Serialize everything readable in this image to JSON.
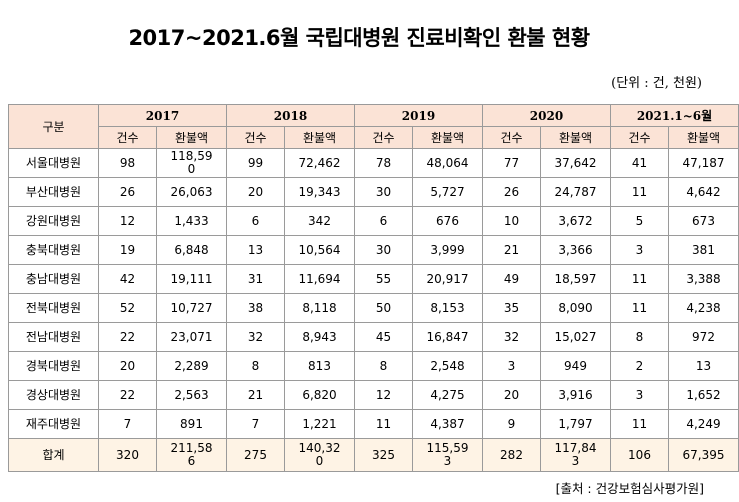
{
  "title": "2017~2021.6월 국립대병원 진료비확인 환불 현황",
  "unit": "(단위 : 건, 천원)",
  "header": {
    "category": "구분",
    "years": [
      "2017",
      "2018",
      "2019",
      "2020",
      "2021.1~6월"
    ],
    "count": "건수",
    "amount": "환불액"
  },
  "rows": [
    {
      "name": "서울대병원",
      "values": [
        "98",
        "118,590",
        "99",
        "72,462",
        "78",
        "48,064",
        "77",
        "37,642",
        "41",
        "47,187"
      ]
    },
    {
      "name": "부산대병원",
      "values": [
        "26",
        "26,063",
        "20",
        "19,343",
        "30",
        "5,727",
        "26",
        "24,787",
        "11",
        "4,642"
      ]
    },
    {
      "name": "강원대병원",
      "values": [
        "12",
        "1,433",
        "6",
        "342",
        "6",
        "676",
        "10",
        "3,672",
        "5",
        "673"
      ]
    },
    {
      "name": "충북대병원",
      "values": [
        "19",
        "6,848",
        "13",
        "10,564",
        "30",
        "3,999",
        "21",
        "3,366",
        "3",
        "381"
      ]
    },
    {
      "name": "충남대병원",
      "values": [
        "42",
        "19,111",
        "31",
        "11,694",
        "55",
        "20,917",
        "49",
        "18,597",
        "11",
        "3,388"
      ]
    },
    {
      "name": "전북대병원",
      "values": [
        "52",
        "10,727",
        "38",
        "8,118",
        "50",
        "8,153",
        "35",
        "8,090",
        "11",
        "4,238"
      ]
    },
    {
      "name": "전남대병원",
      "values": [
        "22",
        "23,071",
        "32",
        "8,943",
        "45",
        "16,847",
        "32",
        "15,027",
        "8",
        "972"
      ]
    },
    {
      "name": "경북대병원",
      "values": [
        "20",
        "2,289",
        "8",
        "813",
        "8",
        "2,548",
        "3",
        "949",
        "2",
        "13"
      ]
    },
    {
      "name": "경상대병원",
      "values": [
        "22",
        "2,563",
        "21",
        "6,820",
        "12",
        "4,275",
        "20",
        "3,916",
        "3",
        "1,652"
      ]
    },
    {
      "name": "재주대병원",
      "values": [
        "7",
        "891",
        "7",
        "1,221",
        "11",
        "4,387",
        "9",
        "1,797",
        "11",
        "4,249"
      ]
    }
  ],
  "total": {
    "name": "합계",
    "values": [
      "320",
      "211,586",
      "275",
      "140,320",
      "325",
      "115,593",
      "282",
      "117,843",
      "106",
      "67,395"
    ]
  },
  "source": "[출처 : 건강보험심사평가원]",
  "colors": {
    "header_bg": "#fbe3d6",
    "total_bg": "#fef3e5",
    "border": "#9a9a9a"
  }
}
